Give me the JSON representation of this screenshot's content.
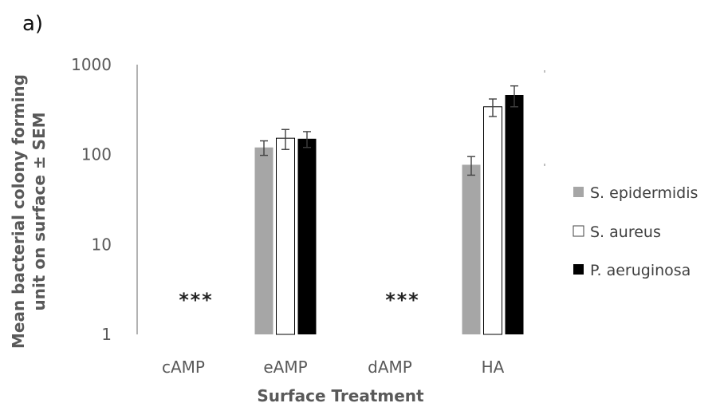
{
  "panel_label": "a)",
  "colors": {
    "s_epidermidis": "#a6a6a6",
    "s_aureus": "#ffffff",
    "p_aeruginosa": "#000000",
    "axis": "#7f7f7f",
    "text": "#595959"
  },
  "chart_data": {
    "type": "bar",
    "title": "",
    "xlabel": "Surface Treatment",
    "ylabel_lines": [
      "Mean bacterial colony forming",
      "unit on surface ± SEM"
    ],
    "yscale": "log",
    "ylim": [
      1,
      1000
    ],
    "yticks": [
      1,
      10,
      100,
      1000
    ],
    "ytick_labels": [
      "1",
      "10",
      "100",
      "1000"
    ],
    "grid": false,
    "legend_position": "right",
    "categories": [
      "cAMP",
      "eAMP",
      "dAMP",
      "HA"
    ],
    "series": [
      {
        "name": "S. epidermidis",
        "values": [
          null,
          120,
          null,
          77
        ],
        "errors": [
          null,
          22,
          null,
          18
        ]
      },
      {
        "name": "S. aureus",
        "values": [
          null,
          152,
          null,
          340
        ],
        "errors": [
          null,
          38,
          null,
          75
        ]
      },
      {
        "name": "P. aeruginosa",
        "values": [
          null,
          150,
          null,
          460
        ],
        "errors": [
          null,
          30,
          null,
          120
        ]
      }
    ],
    "annotations": [
      {
        "category": "cAMP",
        "text": "***"
      },
      {
        "category": "dAMP",
        "text": "***"
      }
    ]
  }
}
